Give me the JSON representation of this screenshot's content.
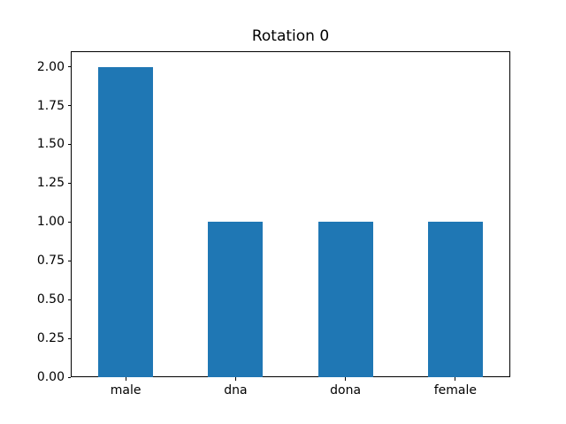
{
  "figure": {
    "background": "#ffffff",
    "spine_color": "#000000",
    "text_color": "#000000"
  },
  "chart_data": {
    "type": "bar",
    "title": "Rotation 0",
    "categories": [
      "male",
      "dna",
      "dona",
      "female"
    ],
    "values": [
      2,
      1,
      1,
      1
    ],
    "bar_color": "#1f77b4",
    "bar_width_data": 0.5,
    "xlabel": "",
    "ylabel": "",
    "xlim": [
      -0.5,
      3.5
    ],
    "ylim": [
      0,
      2.1
    ],
    "yticks": [
      0,
      0.25,
      0.5,
      0.75,
      1.0,
      1.25,
      1.5,
      1.75,
      2.0
    ],
    "ytick_labels": [
      "0.00",
      "0.25",
      "0.50",
      "0.75",
      "1.00",
      "1.25",
      "1.50",
      "1.75",
      "2.00"
    ],
    "xtick_rotation": 0,
    "grid": false,
    "legend_position": "none"
  }
}
